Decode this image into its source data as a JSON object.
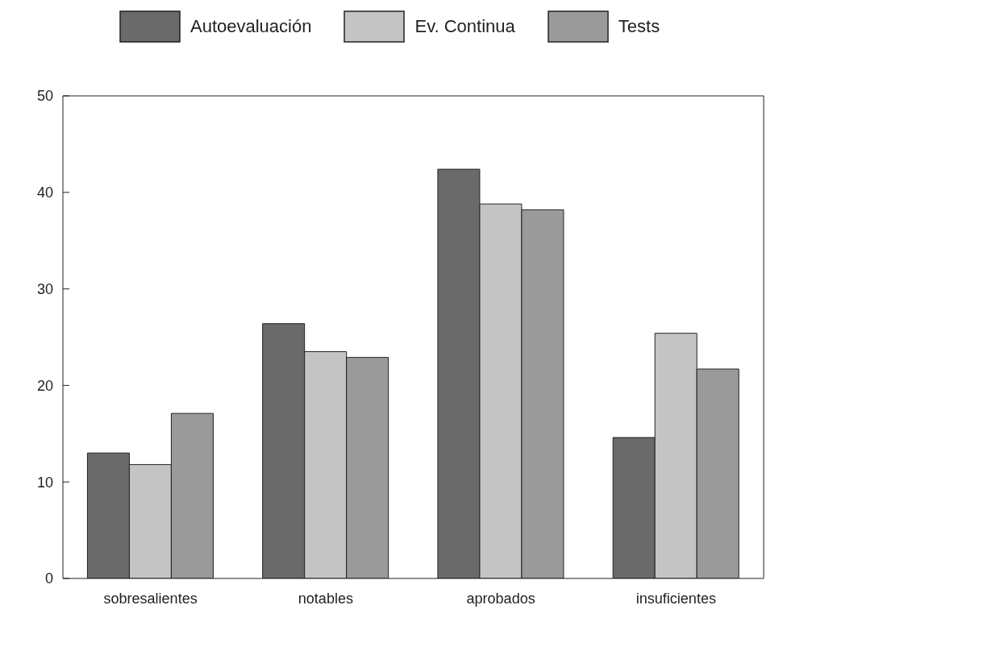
{
  "chart_data": {
    "type": "bar",
    "categories": [
      "sobresalientes",
      "notables",
      "aprobados",
      "insuficientes"
    ],
    "series": [
      {
        "name": "Autoevaluación",
        "color": "#6a6a6a",
        "values": [
          13.0,
          26.4,
          42.4,
          14.6
        ]
      },
      {
        "name": "Ev. Continua",
        "color": "#c4c4c4",
        "values": [
          11.8,
          23.5,
          38.8,
          25.4
        ]
      },
      {
        "name": "Tests",
        "color": "#9a9a9a",
        "values": [
          17.1,
          22.9,
          38.2,
          21.7
        ]
      }
    ],
    "ylim": [
      0,
      50
    ],
    "yticks": [
      0,
      10,
      20,
      30,
      40,
      50
    ],
    "grid": false,
    "legend": "top left"
  }
}
